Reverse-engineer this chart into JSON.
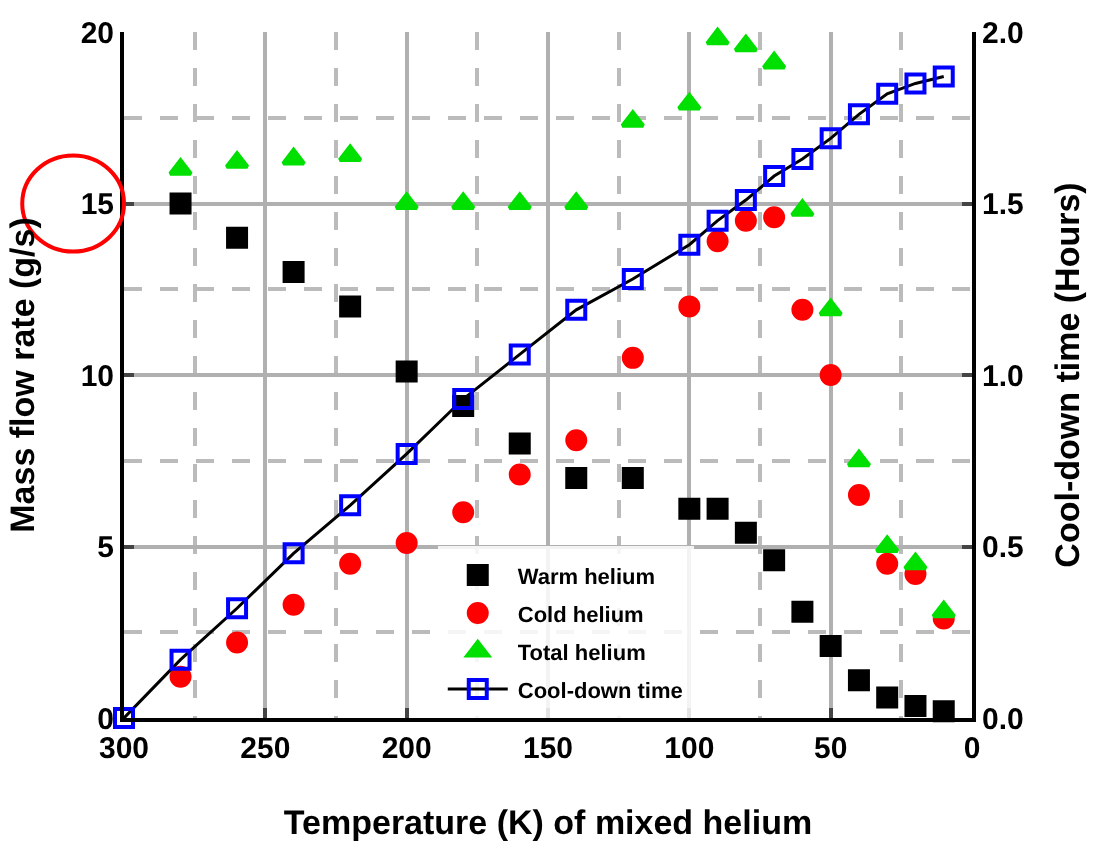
{
  "chart_data": {
    "type": "scatter",
    "xlabel": "Temperature (K) of mixed helium",
    "ylabel": "Mass flow rate (g/s)",
    "y2label": "Cool-down time (Hours)",
    "x": [
      280,
      260,
      240,
      220,
      200,
      180,
      160,
      140,
      120,
      100,
      90,
      80,
      70,
      60,
      50,
      40,
      30,
      20,
      10
    ],
    "series": [
      {
        "name": "Warm helium",
        "color": "#000000",
        "marker": "square",
        "values": [
          15.0,
          14.0,
          13.0,
          12.0,
          10.1,
          9.1,
          8.0,
          7.0,
          7.0,
          6.1,
          6.1,
          5.4,
          4.6,
          3.1,
          2.1,
          1.1,
          0.6,
          0.35,
          0.2
        ]
      },
      {
        "name": "Cold helium",
        "color": "#ff0000",
        "marker": "circle",
        "values": [
          1.2,
          2.2,
          3.3,
          4.5,
          5.1,
          6.0,
          7.1,
          8.1,
          10.5,
          12.0,
          13.9,
          14.5,
          14.6,
          11.9,
          10.0,
          6.5,
          4.5,
          4.2,
          2.9
        ]
      },
      {
        "name": "Total helium",
        "color": "#00e000",
        "marker": "triangle",
        "values": [
          16.0,
          16.2,
          16.3,
          16.4,
          15.0,
          15.0,
          15.0,
          15.0,
          17.4,
          17.9,
          19.8,
          19.6,
          19.1,
          14.8,
          11.9,
          7.5,
          5.0,
          4.5,
          3.1
        ]
      },
      {
        "name": "Cool-down time",
        "type": "line",
        "axis": "y2",
        "color": "#0000ff",
        "marker": "square-open",
        "x": [
          300,
          280,
          260,
          240,
          220,
          200,
          180,
          160,
          140,
          120,
          100,
          90,
          80,
          70,
          60,
          50,
          40,
          30,
          20,
          10
        ],
        "values": [
          0,
          0.17,
          0.32,
          0.48,
          0.62,
          0.77,
          0.93,
          1.06,
          1.19,
          1.28,
          1.38,
          1.45,
          1.51,
          1.58,
          1.63,
          1.69,
          1.76,
          1.82,
          1.85,
          1.87
        ]
      }
    ],
    "xlim": [
      300,
      0
    ],
    "xticks": [
      300,
      250,
      200,
      150,
      100,
      50,
      0
    ],
    "ylim": [
      0,
      20
    ],
    "yticks": [
      0,
      5,
      10,
      15,
      20
    ],
    "y2lim": [
      0,
      2
    ],
    "y2ticks": [
      {
        "value": 0,
        "label": "0.0"
      },
      {
        "value": 0.5,
        "label": "0.5"
      },
      {
        "value": 1,
        "label": "1.0"
      },
      {
        "value": 1.5,
        "label": "1.5"
      },
      {
        "value": 2,
        "label": "2.0"
      }
    ],
    "grid": true,
    "legend": "bottom"
  }
}
